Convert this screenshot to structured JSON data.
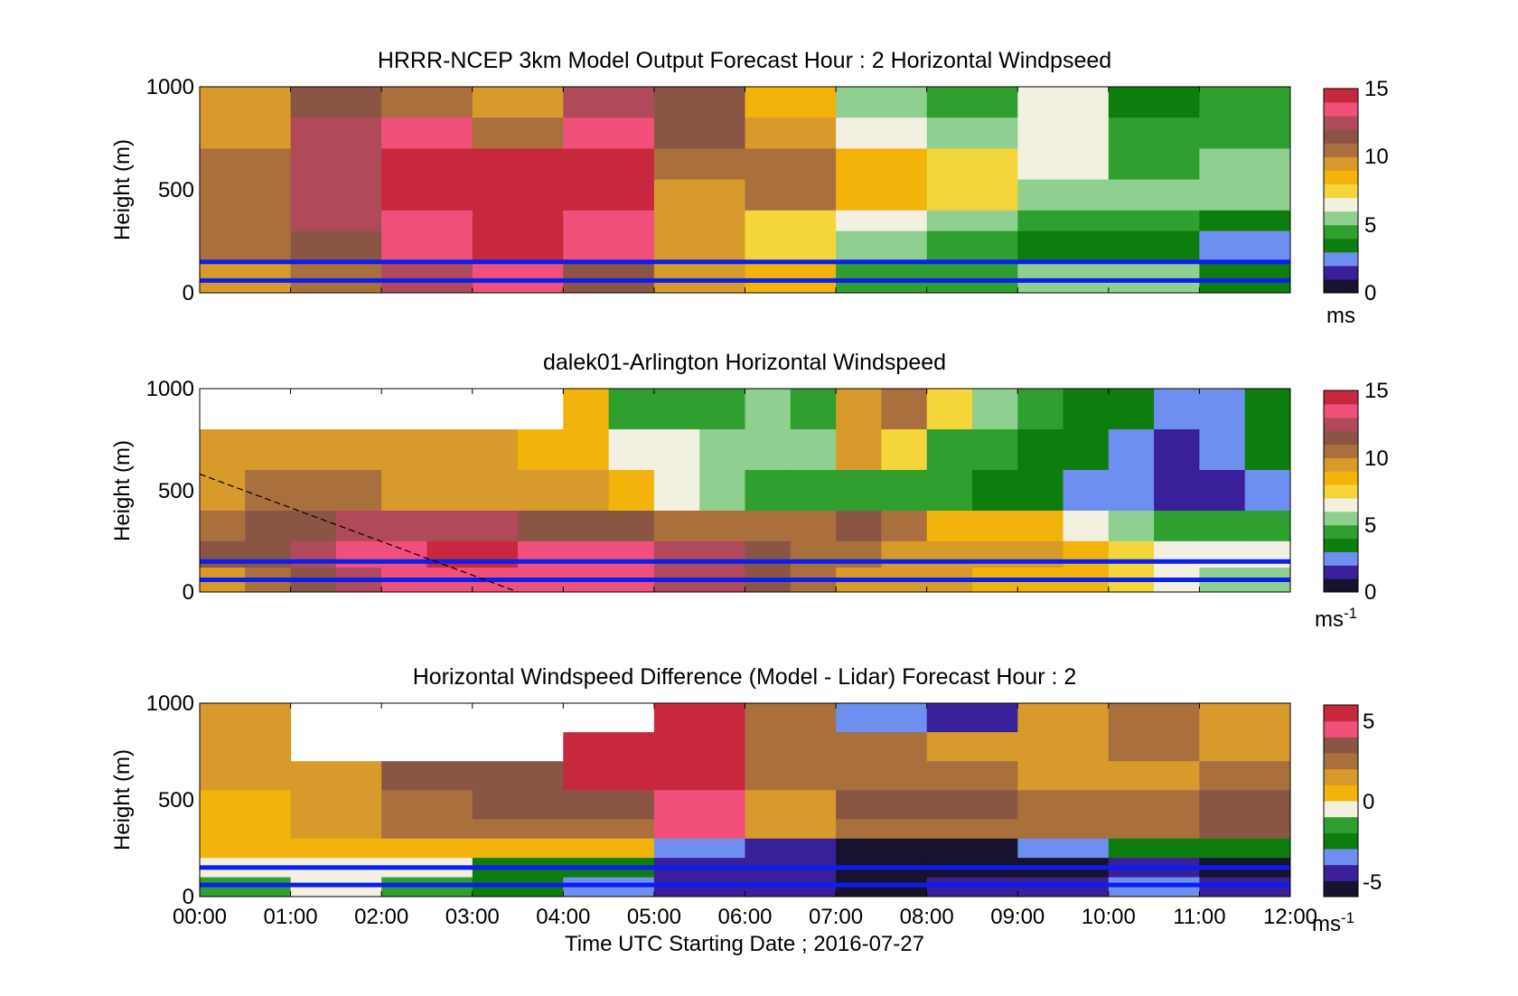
{
  "colormaps": {
    "speed": [
      "#17122e",
      "#3a1f9a",
      "#6e8ff0",
      "#0d7d0d",
      "#2f9f2f",
      "#8fcf8f",
      "#f2f0e0",
      "#f5d63a",
      "#f2b30a",
      "#d89a2a",
      "#a9703e",
      "#8a5545",
      "#b04a5a",
      "#f0507a",
      "#c8283e"
    ],
    "diff": [
      "#17122e",
      "#3a1f9a",
      "#6e8ff0",
      "#0d7d0d",
      "#2f9f2f",
      "#f2f0e0",
      "#f2b30a",
      "#d89a2a",
      "#a9703e",
      "#8a5545",
      "#f0507a",
      "#c8283e"
    ]
  },
  "reference_lines": {
    "color": "#0a1ef0",
    "heights_m": [
      150,
      60
    ]
  },
  "x_axis": {
    "ticks": [
      "00:00",
      "01:00",
      "02:00",
      "03:00",
      "04:00",
      "05:00",
      "06:00",
      "07:00",
      "08:00",
      "09:00",
      "10:00",
      "11:00",
      "12:00"
    ],
    "label": "Time UTC  Starting Date ; 2016-07-27"
  },
  "chart_data": [
    {
      "type": "heatmap",
      "title": "HRRR-NCEP 3km Model Output   Forecast Hour : 2 Horizontal Windpseed",
      "ylabel": "Height (m)",
      "ylim": [
        0,
        1000
      ],
      "yticks": [
        "0",
        "500",
        "1000"
      ],
      "colorbar": {
        "min": 0,
        "max": 15,
        "ticks": [
          "0",
          "5",
          "10",
          "15"
        ],
        "unit": "ms",
        "unit_sup": ""
      },
      "x_hours": [
        0,
        1,
        2,
        3,
        4,
        5,
        6,
        7,
        8,
        9,
        10,
        11,
        12
      ],
      "rows_top_m": [
        1000,
        850,
        700,
        550,
        400,
        300,
        150
      ],
      "values": [
        [
          9.5,
          11.5,
          10.5,
          9.0,
          12.5,
          11.0,
          8.0,
          5.5,
          4.5,
          6.0,
          3.5,
          4.0
        ],
        [
          9.8,
          12.0,
          13.5,
          10.0,
          13.0,
          11.0,
          9.5,
          6.8,
          5.0,
          6.0,
          4.0,
          4.5
        ],
        [
          10.0,
          12.5,
          14.0,
          14.5,
          14.0,
          10.0,
          10.5,
          8.0,
          7.0,
          6.5,
          4.5,
          5.0
        ],
        [
          10.5,
          12.5,
          14.0,
          14.8,
          14.0,
          9.5,
          10.0,
          8.5,
          7.5,
          5.5,
          5.0,
          5.5
        ],
        [
          10.5,
          12.0,
          13.8,
          14.5,
          13.8,
          9.5,
          7.0,
          6.5,
          5.5,
          4.5,
          4.0,
          3.5
        ],
        [
          10.0,
          11.5,
          13.5,
          14.0,
          13.0,
          9.0,
          7.5,
          5.0,
          4.5,
          3.5,
          3.5,
          2.5
        ],
        [
          9.5,
          10.5,
          12.5,
          13.0,
          11.0,
          9.0,
          8.5,
          4.5,
          4.5,
          5.5,
          5.5,
          3.0
        ]
      ]
    },
    {
      "type": "heatmap",
      "title": "dalek01-Arlington  Horizontal Windspeed",
      "ylabel": "Height (m)",
      "ylim": [
        0,
        1000
      ],
      "yticks": [
        "0",
        "500",
        "1000"
      ],
      "colorbar": {
        "min": 0,
        "max": 15,
        "ticks": [
          "0",
          "5",
          "10",
          "15"
        ],
        "unit": "ms",
        "unit_sup": "-1"
      },
      "x_hours": [
        0,
        0.5,
        1,
        1.5,
        2,
        2.5,
        3,
        3.5,
        4,
        4.5,
        5,
        5.5,
        6,
        6.5,
        7,
        7.5,
        8,
        8.5,
        9,
        9.5,
        10,
        10.5,
        11,
        11.5
      ],
      "rows_top_m": [
        1000,
        800,
        600,
        400,
        250,
        120
      ],
      "values": [
        [
          null,
          null,
          null,
          null,
          null,
          null,
          null,
          null,
          8.0,
          4.5,
          4.0,
          4.5,
          5.0,
          4.5,
          9.5,
          10.0,
          7.0,
          5.0,
          4.5,
          3.5,
          3.0,
          2.0,
          2.5,
          3.0
        ],
        [
          9.0,
          9.5,
          9.5,
          9.5,
          9.0,
          9.0,
          9.5,
          8.5,
          8.0,
          6.5,
          6.0,
          5.5,
          5.0,
          5.0,
          9.0,
          7.5,
          4.5,
          4.0,
          3.5,
          3.0,
          2.5,
          1.5,
          2.5,
          3.0
        ],
        [
          9.5,
          10.0,
          10.0,
          10.0,
          9.5,
          9.5,
          9.5,
          9.5,
          9.5,
          8.5,
          6.0,
          5.5,
          4.5,
          4.5,
          4.0,
          4.0,
          4.0,
          3.5,
          3.0,
          2.5,
          2.0,
          1.5,
          1.5,
          2.0
        ],
        [
          10.5,
          11.0,
          11.5,
          12.0,
          12.0,
          12.0,
          12.0,
          11.5,
          11.0,
          11.0,
          10.5,
          10.0,
          10.0,
          10.5,
          11.0,
          10.5,
          8.0,
          8.5,
          8.0,
          6.5,
          5.5,
          4.5,
          4.0,
          4.5
        ],
        [
          11.0,
          11.5,
          12.5,
          13.5,
          13.5,
          14.0,
          14.0,
          13.5,
          13.5,
          13.0,
          12.5,
          12.0,
          11.5,
          10.5,
          10.0,
          9.5,
          9.5,
          9.0,
          9.0,
          8.0,
          7.5,
          6.5,
          6.0,
          6.0
        ],
        [
          9.5,
          10.0,
          11.0,
          12.5,
          13.0,
          13.5,
          13.5,
          13.5,
          13.0,
          13.0,
          12.5,
          12.0,
          11.0,
          10.0,
          9.0,
          9.0,
          9.0,
          8.5,
          8.5,
          8.0,
          7.0,
          6.5,
          5.5,
          5.0
        ]
      ],
      "annotation_line": {
        "style": "dashed",
        "from": {
          "hour": 0,
          "height_m": 580
        },
        "to": {
          "hour": 3.5,
          "height_m": 0
        }
      }
    },
    {
      "type": "heatmap",
      "title": "Horizontal Windspeed Difference (Model - Lidar) Forecast Hour : 2",
      "ylabel": "Height (m)",
      "ylim": [
        0,
        1000
      ],
      "yticks": [
        "0",
        "500",
        "1000"
      ],
      "colorbar": {
        "min": -6,
        "max": 6,
        "ticks": [
          "-5",
          "0",
          "5"
        ],
        "unit": "ms",
        "unit_sup": "-1"
      },
      "x_hours": [
        0,
        1,
        2,
        3,
        4,
        5,
        6,
        7,
        8,
        9,
        10,
        11,
        12
      ],
      "rows_top_m": [
        1000,
        850,
        700,
        550,
        400,
        300,
        200,
        100
      ],
      "values": [
        [
          1.5,
          null,
          null,
          null,
          null,
          5.5,
          2.5,
          -4.0,
          -5.0,
          1.0,
          2.5,
          1.0
        ],
        [
          1.0,
          null,
          null,
          null,
          5.0,
          5.0,
          2.5,
          2.5,
          1.0,
          1.0,
          2.0,
          1.5
        ],
        [
          1.0,
          1.0,
          3.0,
          3.0,
          5.5,
          5.0,
          2.0,
          2.5,
          2.5,
          1.0,
          1.5,
          2.5
        ],
        [
          0.5,
          1.0,
          2.5,
          3.5,
          3.5,
          4.5,
          1.5,
          3.5,
          3.0,
          2.0,
          2.5,
          3.5
        ],
        [
          0.0,
          1.0,
          2.0,
          2.5,
          2.5,
          4.5,
          1.0,
          2.5,
          2.5,
          2.0,
          2.0,
          3.0
        ],
        [
          0.0,
          0.5,
          0.5,
          0.0,
          0.5,
          -3.5,
          -4.5,
          -6.0,
          -6.0,
          -4.0,
          -2.5,
          -3.0
        ],
        [
          -1.0,
          -0.5,
          -0.5,
          -2.5,
          -2.5,
          -5.0,
          -5.0,
          -6.0,
          -6.0,
          -5.5,
          -5.0,
          -5.5
        ],
        [
          -1.5,
          -1.0,
          -1.5,
          -3.0,
          -3.5,
          -5.0,
          -4.5,
          -5.5,
          -5.0,
          -4.5,
          -4.0,
          -4.5
        ]
      ]
    }
  ]
}
